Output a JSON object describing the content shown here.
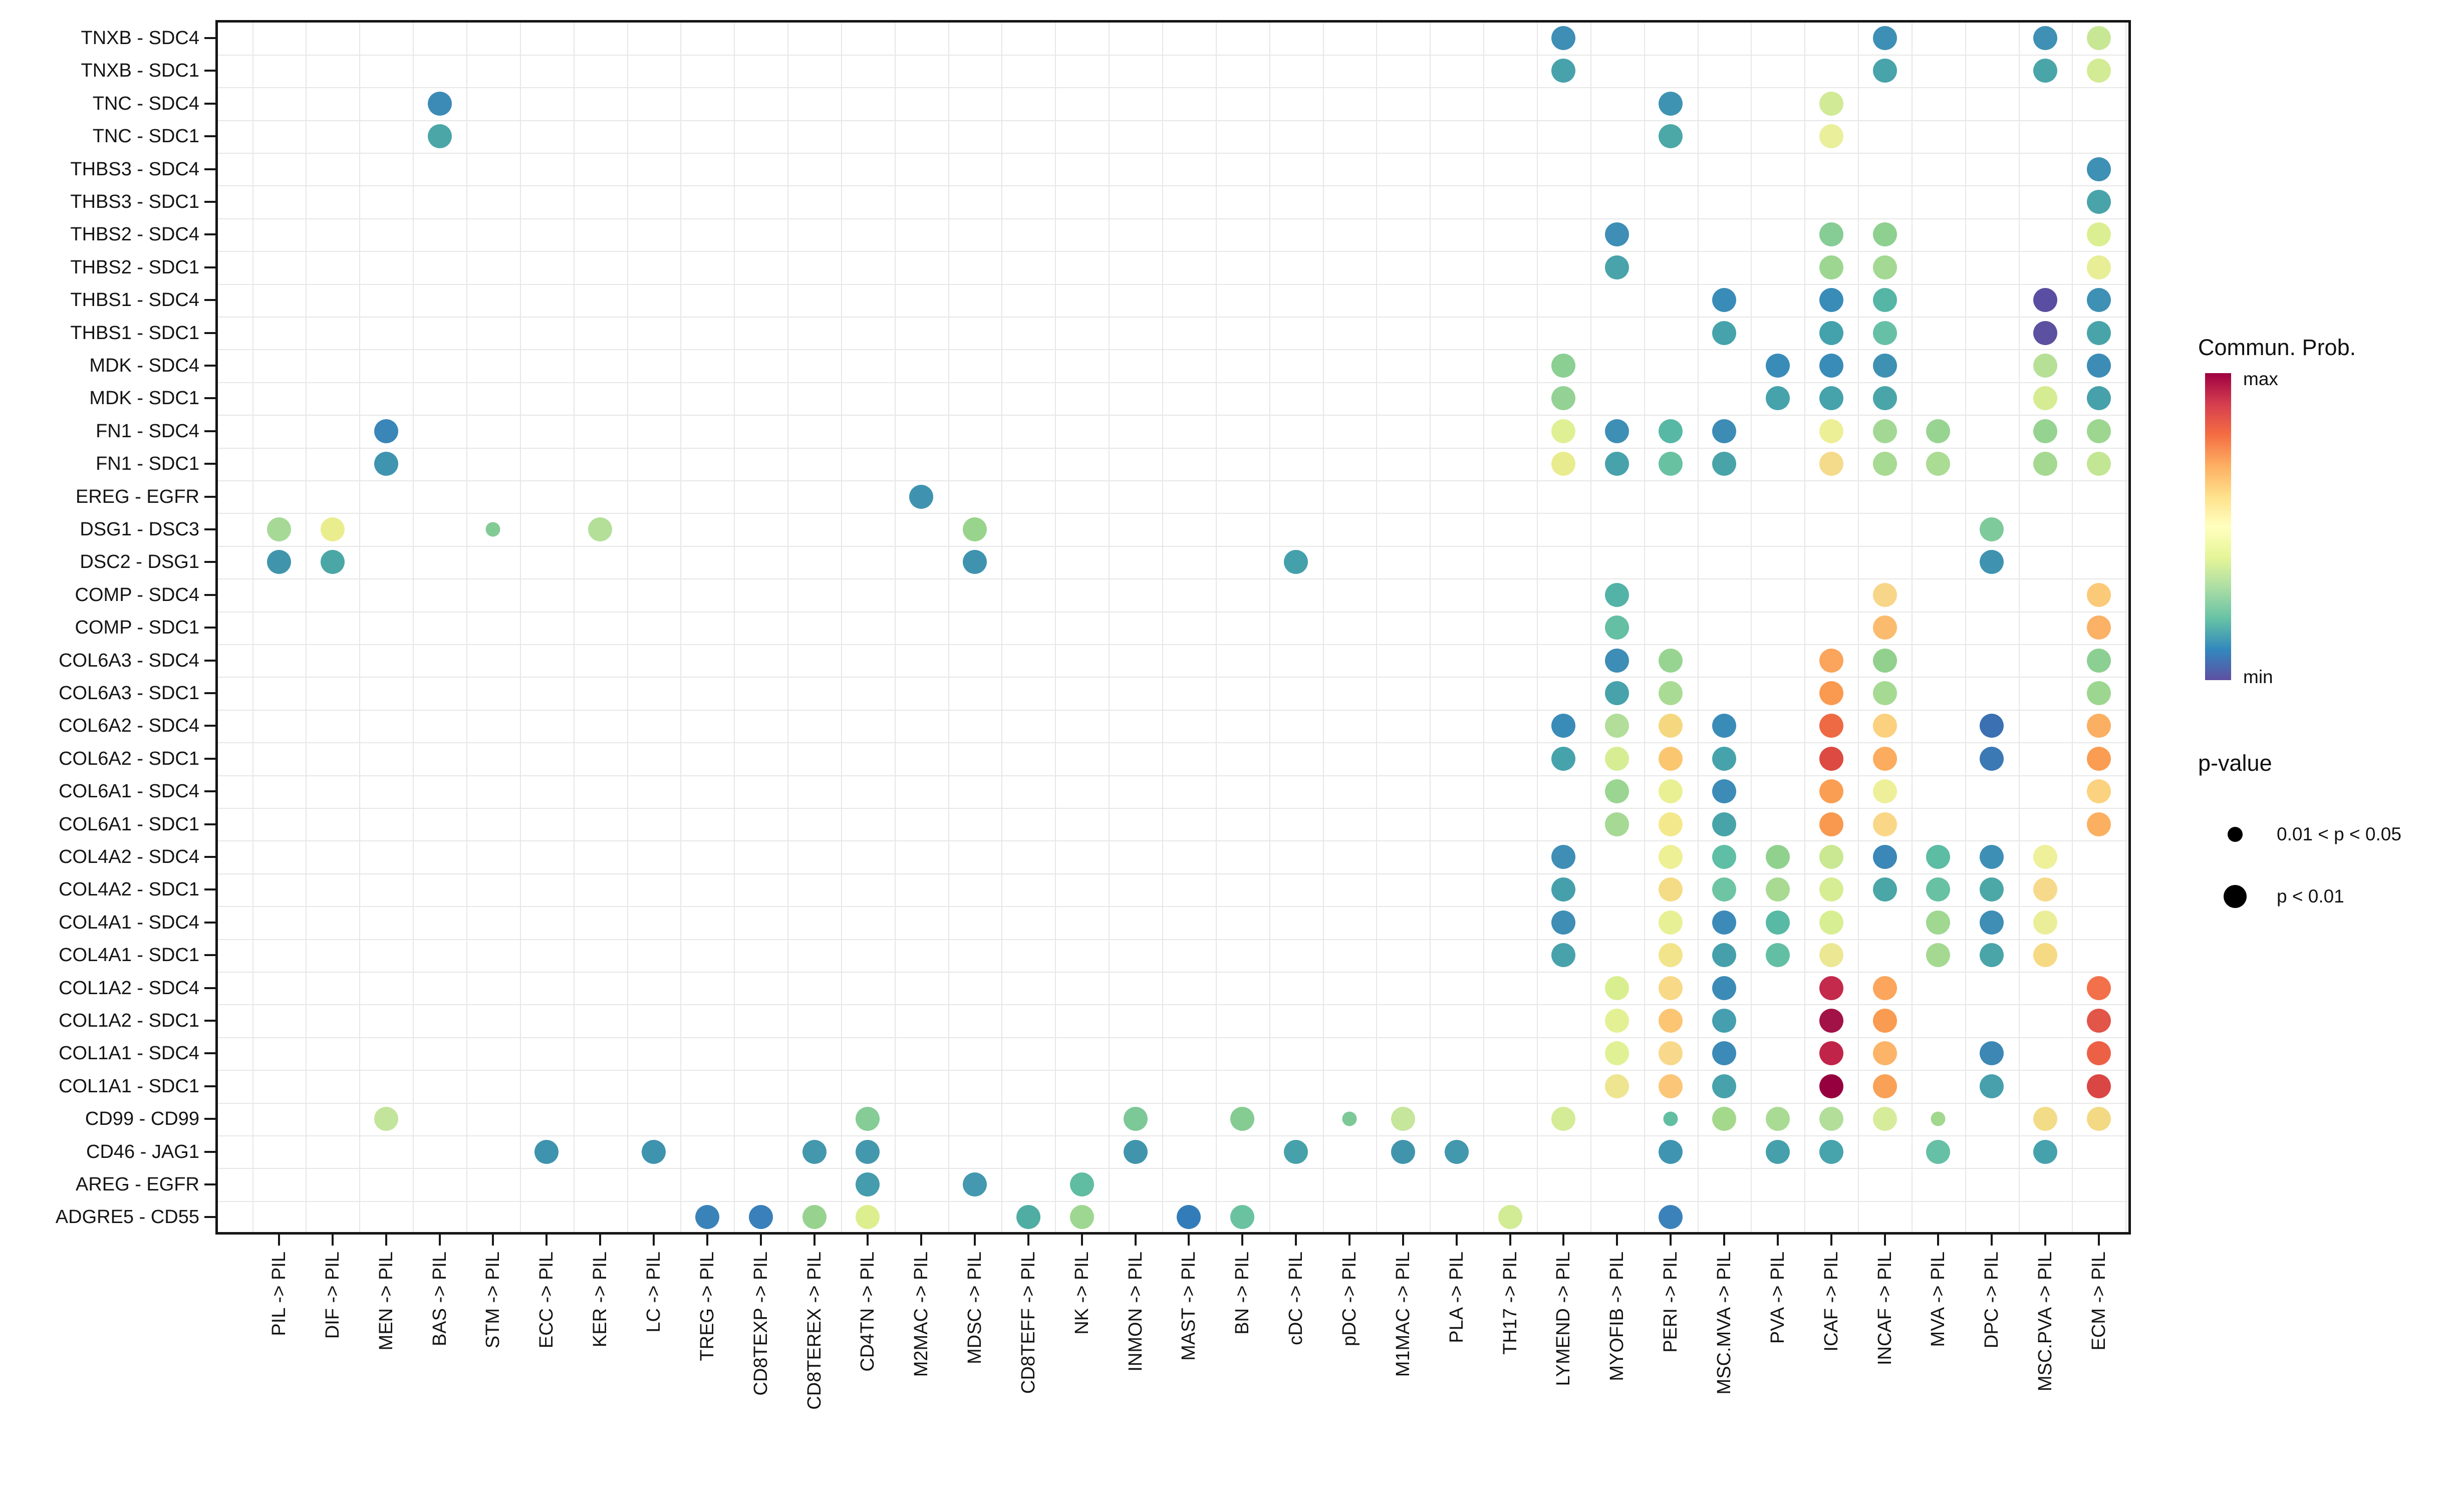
{
  "legend": {
    "colorbar_title": "Commun. Prob.",
    "colorbar_max_label": "max",
    "colorbar_min_label": "min",
    "colorbar_colors": [
      "#9E0142",
      "#D53E4F",
      "#F46D43",
      "#FDAE61",
      "#FEE08B",
      "#FFFFBF",
      "#E6F598",
      "#ABDDA4",
      "#66C2A5",
      "#3288BD",
      "#5E4FA2"
    ],
    "pvalue_title": "p-value",
    "pvalue_items": [
      {
        "label": "0.01 < p < 0.05",
        "size": "small"
      },
      {
        "label": "p < 0.01",
        "size": "large"
      }
    ]
  },
  "chart_data": {
    "type": "scatter",
    "subtype": "bubble-dotplot (ligand-receptor communication)",
    "title": "",
    "xlabel": "",
    "ylabel": "",
    "grid": true,
    "legend_position": "right",
    "color_scale": {
      "name": "Spectral reversed",
      "min_label": "min",
      "max_label": "max",
      "title": "Commun. Prob."
    },
    "size_scale": {
      "small": "0.01 < p < 0.05",
      "large": "p < 0.01"
    },
    "y_categories": [
      "TNXB - SDC4",
      "TNXB - SDC1",
      "TNC - SDC4",
      "TNC - SDC1",
      "THBS3 - SDC4",
      "THBS3 - SDC1",
      "THBS2 - SDC4",
      "THBS2 - SDC1",
      "THBS1 - SDC4",
      "THBS1 - SDC1",
      "MDK - SDC4",
      "MDK - SDC1",
      "FN1 - SDC4",
      "FN1 - SDC1",
      "EREG - EGFR",
      "DSG1 - DSC3",
      "DSC2 - DSG1",
      "COMP - SDC4",
      "COMP - SDC1",
      "COL6A3 - SDC4",
      "COL6A3 - SDC1",
      "COL6A2 - SDC4",
      "COL6A2 - SDC1",
      "COL6A1 - SDC4",
      "COL6A1 - SDC1",
      "COL4A2 - SDC4",
      "COL4A2 - SDC1",
      "COL4A1 - SDC4",
      "COL4A1 - SDC1",
      "COL1A2 - SDC4",
      "COL1A2 - SDC1",
      "COL1A1 - SDC4",
      "COL1A1 - SDC1",
      "CD99 - CD99",
      "CD46 - JAG1",
      "AREG - EGFR",
      "ADGRE5 - CD55"
    ],
    "x_categories": [
      "PIL -> PIL",
      "DIF -> PIL",
      "MEN -> PIL",
      "BAS -> PIL",
      "STM -> PIL",
      "ECC -> PIL",
      "KER -> PIL",
      "LC -> PIL",
      "TREG -> PIL",
      "CD8TEXP -> PIL",
      "CD8TEREX -> PIL",
      "CD4TN -> PIL",
      "M2MAC -> PIL",
      "MDSC -> PIL",
      "CD8TEFF -> PIL",
      "NK -> PIL",
      "INMON -> PIL",
      "MAST -> PIL",
      "BN -> PIL",
      "cDC -> PIL",
      "pDC -> PIL",
      "M1MAC -> PIL",
      "PLA -> PIL",
      "TH17 -> PIL",
      "LYMEND -> PIL",
      "MYOFIB -> PIL",
      "PERI -> PIL",
      "MSC.MVA -> PIL",
      "PVA -> PIL",
      "ICAF -> PIL",
      "INCAF -> PIL",
      "MVA -> PIL",
      "DPC -> PIL",
      "MSC.PVA -> PIL",
      "ECM -> PIL"
    ],
    "points_format": "[rowIndex(1-based top-down), colIndex(1-based left-right), color, size L=p<0.01 S=0.01<p<0.05]",
    "points": [
      [
        1,
        25,
        "#3e8eb6",
        "L"
      ],
      [
        1,
        31,
        "#3e8fb5",
        "L"
      ],
      [
        1,
        34,
        "#3f90b4",
        "L"
      ],
      [
        1,
        35,
        "#c8e795",
        "L"
      ],
      [
        2,
        25,
        "#48a2ab",
        "L"
      ],
      [
        2,
        31,
        "#48a3aa",
        "L"
      ],
      [
        2,
        34,
        "#4aa5a8",
        "L"
      ],
      [
        2,
        35,
        "#d2eb94",
        "L"
      ],
      [
        3,
        4,
        "#3c8bb7",
        "L"
      ],
      [
        3,
        27,
        "#3f93b2",
        "L"
      ],
      [
        3,
        30,
        "#d0ea95",
        "L"
      ],
      [
        4,
        4,
        "#4aa6a7",
        "L"
      ],
      [
        4,
        27,
        "#4ca8a6",
        "L"
      ],
      [
        4,
        30,
        "#e9ef9a",
        "L"
      ],
      [
        5,
        35,
        "#3e90b4",
        "L"
      ],
      [
        6,
        35,
        "#49a4a9",
        "L"
      ],
      [
        7,
        26,
        "#3e8eb6",
        "L"
      ],
      [
        7,
        30,
        "#86cc95",
        "L"
      ],
      [
        7,
        31,
        "#8dd08f",
        "L"
      ],
      [
        7,
        35,
        "#dbef92",
        "L"
      ],
      [
        8,
        26,
        "#48a3aa",
        "L"
      ],
      [
        8,
        30,
        "#9dd691",
        "L"
      ],
      [
        8,
        31,
        "#a3d992",
        "L"
      ],
      [
        8,
        35,
        "#e8ee95",
        "L"
      ],
      [
        9,
        28,
        "#3a8cb8",
        "L"
      ],
      [
        9,
        30,
        "#3a8cb8",
        "L"
      ],
      [
        9,
        31,
        "#55b6a6",
        "L"
      ],
      [
        9,
        34,
        "#5a4ea2",
        "L"
      ],
      [
        9,
        35,
        "#3e90b4",
        "L"
      ],
      [
        10,
        28,
        "#46a3ab",
        "L"
      ],
      [
        10,
        30,
        "#44a2ad",
        "L"
      ],
      [
        10,
        31,
        "#66c0a5",
        "L"
      ],
      [
        10,
        34,
        "#5c50a0",
        "L"
      ],
      [
        10,
        35,
        "#49a4a9",
        "L"
      ],
      [
        11,
        25,
        "#8bcf93",
        "L"
      ],
      [
        11,
        29,
        "#3a8cb8",
        "L"
      ],
      [
        11,
        30,
        "#3a8cb8",
        "L"
      ],
      [
        11,
        31,
        "#3f91b3",
        "L"
      ],
      [
        11,
        34,
        "#b7e097",
        "L"
      ],
      [
        11,
        35,
        "#3d8cb6",
        "L"
      ],
      [
        12,
        25,
        "#93d294",
        "L"
      ],
      [
        12,
        29,
        "#46a3ab",
        "L"
      ],
      [
        12,
        30,
        "#46a3ab",
        "L"
      ],
      [
        12,
        31,
        "#4aa5a8",
        "L"
      ],
      [
        12,
        34,
        "#d5ec93",
        "L"
      ],
      [
        12,
        35,
        "#47a1ab",
        "L"
      ],
      [
        13,
        3,
        "#3a86b9",
        "L"
      ],
      [
        13,
        25,
        "#dff094",
        "L"
      ],
      [
        13,
        26,
        "#3e8fb5",
        "L"
      ],
      [
        13,
        27,
        "#57b8a5",
        "L"
      ],
      [
        13,
        28,
        "#3d8cb6",
        "L"
      ],
      [
        13,
        30,
        "#ecef95",
        "L"
      ],
      [
        13,
        31,
        "#a2d894",
        "L"
      ],
      [
        13,
        32,
        "#98d491",
        "L"
      ],
      [
        13,
        34,
        "#95d391",
        "L"
      ],
      [
        13,
        35,
        "#9cd68f",
        "L"
      ],
      [
        14,
        3,
        "#3f94b0",
        "L"
      ],
      [
        14,
        25,
        "#e9ec8e",
        "L"
      ],
      [
        14,
        26,
        "#48a2ab",
        "L"
      ],
      [
        14,
        27,
        "#68c1a1",
        "L"
      ],
      [
        14,
        28,
        "#49a4a9",
        "L"
      ],
      [
        14,
        30,
        "#f4da8b",
        "L"
      ],
      [
        14,
        31,
        "#a7da92",
        "L"
      ],
      [
        14,
        32,
        "#abdc94",
        "L"
      ],
      [
        14,
        34,
        "#a5d991",
        "L"
      ],
      [
        14,
        35,
        "#c3e695",
        "L"
      ],
      [
        15,
        13,
        "#3f93b1",
        "L"
      ],
      [
        16,
        1,
        "#a6d996",
        "L"
      ],
      [
        16,
        2,
        "#eaed8e",
        "L"
      ],
      [
        16,
        5,
        "#83cb95",
        "S"
      ],
      [
        16,
        7,
        "#b4df99",
        "L"
      ],
      [
        16,
        14,
        "#99d48c",
        "L"
      ],
      [
        16,
        33,
        "#7eca9a",
        "L"
      ],
      [
        17,
        1,
        "#4095ac",
        "L"
      ],
      [
        17,
        2,
        "#4ba7a6",
        "L"
      ],
      [
        17,
        14,
        "#3f93af",
        "L"
      ],
      [
        17,
        20,
        "#44a0ab",
        "L"
      ],
      [
        17,
        33,
        "#3f93b0",
        "L"
      ],
      [
        18,
        26,
        "#52b3a6",
        "L"
      ],
      [
        18,
        31,
        "#f8d689",
        "L"
      ],
      [
        18,
        35,
        "#fbca79",
        "L"
      ],
      [
        19,
        26,
        "#65bfa2",
        "L"
      ],
      [
        19,
        31,
        "#fbbb6e",
        "L"
      ],
      [
        19,
        35,
        "#fbb166",
        "L"
      ],
      [
        20,
        26,
        "#3e8db6",
        "L"
      ],
      [
        20,
        27,
        "#98d491",
        "L"
      ],
      [
        20,
        30,
        "#fba45b",
        "L"
      ],
      [
        20,
        31,
        "#91d18d",
        "L"
      ],
      [
        20,
        35,
        "#8ccf92",
        "L"
      ],
      [
        21,
        26,
        "#47a2ab",
        "L"
      ],
      [
        21,
        27,
        "#aadb94",
        "L"
      ],
      [
        21,
        30,
        "#f99a50",
        "L"
      ],
      [
        21,
        31,
        "#a6da93",
        "L"
      ],
      [
        21,
        35,
        "#9dd690",
        "L"
      ],
      [
        22,
        25,
        "#3a8cb8",
        "L"
      ],
      [
        22,
        26,
        "#b2de99",
        "L"
      ],
      [
        22,
        27,
        "#f5d780",
        "L"
      ],
      [
        22,
        28,
        "#3a8cb8",
        "L"
      ],
      [
        22,
        30,
        "#ee6a44",
        "L"
      ],
      [
        22,
        31,
        "#fbd07e",
        "L"
      ],
      [
        22,
        33,
        "#3b70b2",
        "L"
      ],
      [
        22,
        35,
        "#fbaf63",
        "L"
      ],
      [
        23,
        25,
        "#46a3ab",
        "L"
      ],
      [
        23,
        26,
        "#d6ed93",
        "L"
      ],
      [
        23,
        27,
        "#fac770",
        "L"
      ],
      [
        23,
        28,
        "#46a3ab",
        "L"
      ],
      [
        23,
        30,
        "#dc4a41",
        "L"
      ],
      [
        23,
        31,
        "#fbac5e",
        "L"
      ],
      [
        23,
        33,
        "#3b79b4",
        "L"
      ],
      [
        23,
        35,
        "#fa9d53",
        "L"
      ],
      [
        24,
        26,
        "#9ad591",
        "L"
      ],
      [
        24,
        27,
        "#e9f094",
        "L"
      ],
      [
        24,
        28,
        "#3d8bb7",
        "L"
      ],
      [
        24,
        30,
        "#fa9e54",
        "L"
      ],
      [
        24,
        31,
        "#edf099",
        "L"
      ],
      [
        24,
        35,
        "#fbd280",
        "L"
      ],
      [
        25,
        26,
        "#a5d994",
        "L"
      ],
      [
        25,
        27,
        "#f3e98c",
        "L"
      ],
      [
        25,
        28,
        "#48a4a9",
        "L"
      ],
      [
        25,
        30,
        "#f8994f",
        "L"
      ],
      [
        25,
        31,
        "#f9d787",
        "L"
      ],
      [
        25,
        35,
        "#fbb061",
        "L"
      ],
      [
        26,
        25,
        "#3e8eb6",
        "L"
      ],
      [
        26,
        27,
        "#edf094",
        "L"
      ],
      [
        26,
        28,
        "#5fbea6",
        "L"
      ],
      [
        26,
        29,
        "#91d18e",
        "L"
      ],
      [
        26,
        30,
        "#c9e891",
        "L"
      ],
      [
        26,
        31,
        "#3a87b8",
        "L"
      ],
      [
        26,
        32,
        "#5cbca4",
        "L"
      ],
      [
        26,
        33,
        "#3e8fb5",
        "L"
      ],
      [
        26,
        34,
        "#eef09a",
        "L"
      ],
      [
        27,
        25,
        "#46a0ac",
        "L"
      ],
      [
        27,
        27,
        "#f4dc86",
        "L"
      ],
      [
        27,
        28,
        "#6ec5a3",
        "L"
      ],
      [
        27,
        29,
        "#a8da92",
        "L"
      ],
      [
        27,
        30,
        "#d6ed94",
        "L"
      ],
      [
        27,
        31,
        "#4aa6a7",
        "L"
      ],
      [
        27,
        32,
        "#68c1a2",
        "L"
      ],
      [
        27,
        33,
        "#4ca8a6",
        "L"
      ],
      [
        27,
        34,
        "#f6d98a",
        "L"
      ],
      [
        28,
        25,
        "#3e8eb6",
        "L"
      ],
      [
        28,
        27,
        "#e8f095",
        "L"
      ],
      [
        28,
        28,
        "#3c8ab8",
        "L"
      ],
      [
        28,
        29,
        "#58b9a4",
        "L"
      ],
      [
        28,
        30,
        "#d8ee92",
        "L"
      ],
      [
        28,
        32,
        "#a0d791",
        "L"
      ],
      [
        28,
        33,
        "#3e8eb6",
        "L"
      ],
      [
        28,
        34,
        "#ebee98",
        "L"
      ],
      [
        29,
        25,
        "#48a2ab",
        "L"
      ],
      [
        29,
        27,
        "#f2e48a",
        "L"
      ],
      [
        29,
        28,
        "#45a0ab",
        "L"
      ],
      [
        29,
        29,
        "#63bfa3",
        "L"
      ],
      [
        29,
        30,
        "#ece793",
        "L"
      ],
      [
        29,
        32,
        "#a5d992",
        "L"
      ],
      [
        29,
        33,
        "#4aa5a9",
        "L"
      ],
      [
        29,
        34,
        "#f6d983",
        "L"
      ],
      [
        30,
        26,
        "#d9ef8f",
        "L"
      ],
      [
        30,
        27,
        "#f7d987",
        "L"
      ],
      [
        30,
        28,
        "#3c8bb7",
        "L"
      ],
      [
        30,
        30,
        "#c32a4c",
        "L"
      ],
      [
        30,
        31,
        "#fba55d",
        "L"
      ],
      [
        30,
        35,
        "#f3714a",
        "L"
      ],
      [
        31,
        26,
        "#e3f194",
        "L"
      ],
      [
        31,
        27,
        "#fbc573",
        "L"
      ],
      [
        31,
        28,
        "#459fae",
        "L"
      ],
      [
        31,
        30,
        "#a31246",
        "L"
      ],
      [
        31,
        31,
        "#f99b51",
        "L"
      ],
      [
        31,
        35,
        "#e25549",
        "L"
      ],
      [
        32,
        26,
        "#e0f195",
        "L"
      ],
      [
        32,
        27,
        "#f8d88a",
        "L"
      ],
      [
        32,
        28,
        "#3c8ab8",
        "L"
      ],
      [
        32,
        30,
        "#c02449",
        "L"
      ],
      [
        32,
        31,
        "#fbb468",
        "L"
      ],
      [
        32,
        33,
        "#3d87b5",
        "L"
      ],
      [
        32,
        35,
        "#ec6146",
        "L"
      ],
      [
        33,
        26,
        "#eee590",
        "L"
      ],
      [
        33,
        27,
        "#fbc678",
        "L"
      ],
      [
        33,
        28,
        "#47a2ab",
        "L"
      ],
      [
        33,
        30,
        "#97003f",
        "L"
      ],
      [
        33,
        31,
        "#faa158",
        "L"
      ],
      [
        33,
        33,
        "#47a0ab",
        "L"
      ],
      [
        33,
        35,
        "#da4643",
        "L"
      ],
      [
        34,
        3,
        "#c3e59b",
        "L"
      ],
      [
        34,
        12,
        "#85cc96",
        "L"
      ],
      [
        34,
        17,
        "#7cc897",
        "L"
      ],
      [
        34,
        19,
        "#85cc92",
        "L"
      ],
      [
        34,
        21,
        "#7cc897",
        "S"
      ],
      [
        34,
        22,
        "#c6e69b",
        "L"
      ],
      [
        34,
        25,
        "#d4ec96",
        "L"
      ],
      [
        34,
        27,
        "#62bea1",
        "S"
      ],
      [
        34,
        28,
        "#a4d98c",
        "L"
      ],
      [
        34,
        29,
        "#aadb95",
        "L"
      ],
      [
        34,
        30,
        "#b2de9a",
        "L"
      ],
      [
        34,
        31,
        "#d6ec9b",
        "L"
      ],
      [
        34,
        32,
        "#a2d78e",
        "S"
      ],
      [
        34,
        34,
        "#f2dc88",
        "L"
      ],
      [
        34,
        35,
        "#f3d984",
        "L"
      ],
      [
        35,
        6,
        "#3e93ae",
        "L"
      ],
      [
        35,
        8,
        "#3e93ae",
        "L"
      ],
      [
        35,
        11,
        "#4498ad",
        "L"
      ],
      [
        35,
        12,
        "#4498ad",
        "L"
      ],
      [
        35,
        17,
        "#4095ad",
        "L"
      ],
      [
        35,
        20,
        "#46a1ab",
        "L"
      ],
      [
        35,
        22,
        "#4095ad",
        "L"
      ],
      [
        35,
        23,
        "#4298ad",
        "L"
      ],
      [
        35,
        27,
        "#3f95b1",
        "L"
      ],
      [
        35,
        29,
        "#45a0ac",
        "L"
      ],
      [
        35,
        30,
        "#47a4ad",
        "L"
      ],
      [
        35,
        32,
        "#66c0a6",
        "L"
      ],
      [
        35,
        34,
        "#45a2ad",
        "L"
      ],
      [
        36,
        12,
        "#449cad",
        "L"
      ],
      [
        36,
        14,
        "#4498b0",
        "L"
      ],
      [
        36,
        16,
        "#60bda2",
        "L"
      ],
      [
        37,
        9,
        "#3a83b9",
        "L"
      ],
      [
        37,
        10,
        "#3a80ba",
        "L"
      ],
      [
        37,
        11,
        "#97d38f",
        "L"
      ],
      [
        37,
        12,
        "#dcee8e",
        "L"
      ],
      [
        37,
        15,
        "#4fada3",
        "L"
      ],
      [
        37,
        16,
        "#9ed791",
        "L"
      ],
      [
        37,
        18,
        "#327cb9",
        "L"
      ],
      [
        37,
        19,
        "#6ac2a0",
        "L"
      ],
      [
        37,
        24,
        "#d2eb95",
        "L"
      ],
      [
        37,
        27,
        "#3c82ba",
        "L"
      ]
    ]
  }
}
